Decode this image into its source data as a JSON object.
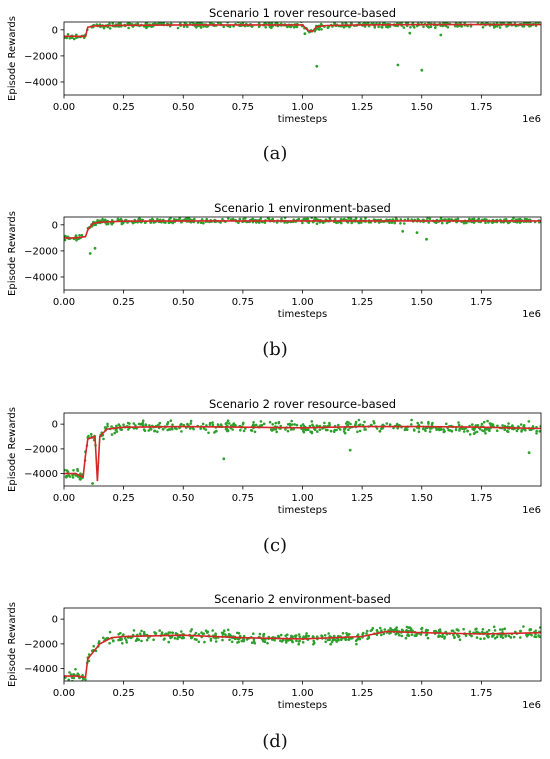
{
  "shared": {
    "xlabel": "timesteps",
    "ylabel": "Episode Rewards",
    "xlim": [
      0,
      2000000
    ],
    "x_ticks": [
      0,
      250000,
      500000,
      750000,
      1000000,
      1250000,
      1500000,
      1750000
    ],
    "x_tick_labels": [
      "0.00",
      "0.25",
      "0.50",
      "0.75",
      "1.00",
      "1.25",
      "1.50",
      "1.75"
    ],
    "x_offset_label": "1e6",
    "y_ticks": [
      0,
      -2000,
      -4000
    ],
    "y_tick_labels": [
      "0",
      "−2000",
      "−4000"
    ],
    "colors": {
      "episode_points": "#2ca02c",
      "smoothed_line": "#d62728",
      "axes": "#000000"
    }
  },
  "chart_data": [
    {
      "type": "line",
      "title": "Scenario 1 rover resource-based",
      "caption": "(a)",
      "ylim": [
        -5000,
        600
      ],
      "x": [
        0,
        50000,
        90000,
        100000,
        130000,
        250000,
        500000,
        750000,
        1000000,
        1020000,
        1040000,
        1060000,
        1100000,
        1250000,
        1500000,
        1750000,
        2000000
      ],
      "series": [
        {
          "role": "smoothed_line",
          "values": [
            -500,
            -500,
            -500,
            200,
            300,
            350,
            380,
            380,
            380,
            0,
            -150,
            250,
            330,
            380,
            400,
            400,
            400
          ]
        }
      ],
      "outliers": [
        [
          1010000,
          -300
        ],
        [
          1060000,
          -2800
        ],
        [
          1400000,
          -2700
        ],
        [
          1500000,
          -3100
        ],
        [
          1450000,
          -250
        ],
        [
          1580000,
          -400
        ]
      ]
    },
    {
      "type": "line",
      "title": "Scenario 1 environment-based",
      "caption": "(b)",
      "ylim": [
        -5000,
        600
      ],
      "x": [
        0,
        50000,
        90000,
        100000,
        120000,
        150000,
        250000,
        500000,
        1000000,
        1500000,
        2000000
      ],
      "series": [
        {
          "role": "smoothed_line",
          "values": [
            -1000,
            -1000,
            -900,
            -400,
            100,
            200,
            280,
            300,
            300,
            300,
            300
          ]
        }
      ],
      "outliers": [
        [
          110000,
          -2200
        ],
        [
          130000,
          -1800
        ],
        [
          1420000,
          -500
        ],
        [
          1480000,
          -600
        ],
        [
          1520000,
          -1100
        ]
      ]
    },
    {
      "type": "line",
      "title": "Scenario 2 rover resource-based",
      "caption": "(c)",
      "ylim": [
        -5000,
        900
      ],
      "x": [
        0,
        50000,
        80000,
        90000,
        100000,
        130000,
        140000,
        150000,
        180000,
        250000,
        500000,
        750000,
        1000000,
        1250000,
        1500000,
        1750000,
        2000000
      ],
      "series": [
        {
          "role": "smoothed_line",
          "values": [
            -4000,
            -4000,
            -4300,
            -2500,
            -1200,
            -1000,
            -4600,
            -1000,
            -400,
            -250,
            -200,
            -250,
            -300,
            -200,
            -200,
            -250,
            -350
          ]
        }
      ],
      "outliers": [
        [
          670000,
          -2800
        ],
        [
          1200000,
          -2100
        ],
        [
          1950000,
          -2300
        ],
        [
          120000,
          -4800
        ]
      ]
    },
    {
      "type": "line",
      "title": "Scenario 2 environment-based",
      "caption": "(d)",
      "ylim": [
        -5000,
        900
      ],
      "x": [
        0,
        50000,
        90000,
        100000,
        150000,
        200000,
        250000,
        500000,
        750000,
        1000000,
        1250000,
        1350000,
        1500000,
        1750000,
        2000000
      ],
      "series": [
        {
          "role": "smoothed_line",
          "values": [
            -4600,
            -4600,
            -4700,
            -3200,
            -2000,
            -1500,
            -1400,
            -1300,
            -1500,
            -1600,
            -1400,
            -1000,
            -1100,
            -1200,
            -1100
          ]
        }
      ],
      "outliers": []
    }
  ]
}
